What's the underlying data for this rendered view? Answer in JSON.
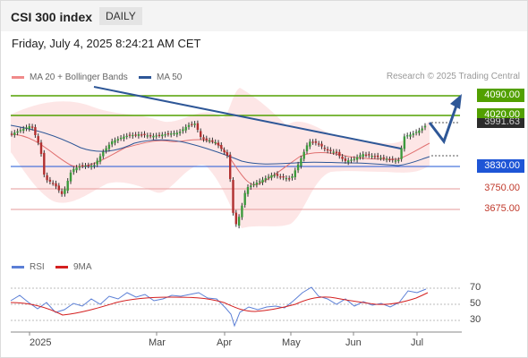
{
  "header": {
    "title": "CSI 300 index",
    "timeframe": "DAILY"
  },
  "subtitle": "Friday, July 4, 2025 8:24:21 AM CET",
  "legend_top": [
    {
      "label": "MA 20 + Bollinger Bands",
      "color": "#f08a8a"
    },
    {
      "label": "MA 50",
      "color": "#2e5797"
    }
  ],
  "credit": "Research © 2025 Trading Central",
  "levels": [
    {
      "value": "4090.00",
      "kind": "resistance"
    },
    {
      "value": "4020.00",
      "kind": "resistance"
    },
    {
      "value": "3991.63",
      "kind": "current"
    },
    {
      "value": "3830.00",
      "kind": "pivot"
    },
    {
      "value": "3750.00",
      "kind": "support"
    },
    {
      "value": "3675.00",
      "kind": "support"
    }
  ],
  "legend_bottom": [
    {
      "label": "RSI",
      "color": "#5b7fd6"
    },
    {
      "label": "9MA",
      "color": "#d42020"
    }
  ],
  "rsi_ticks": [
    "70",
    "50",
    "30"
  ],
  "months": [
    "2025",
    "Mar",
    "Apr",
    "May",
    "Jun",
    "Jul"
  ],
  "colors": {
    "resistance": "#52a000",
    "pivot": "#1e55d6",
    "support": "#d9534f",
    "arrow": "#2e5797"
  },
  "chart_data": {
    "type": "candlestick",
    "title": "CSI 300 index",
    "timeframe": "daily",
    "last_price": 3991.63,
    "resistance_levels": [
      4090,
      4020
    ],
    "pivot": 3830,
    "support_levels": [
      3750,
      3675
    ],
    "indicators": [
      "MA 20 + Bollinger Bands",
      "MA 50",
      "RSI",
      "9MA"
    ],
    "rsi_levels": [
      70,
      50,
      30
    ]
  }
}
